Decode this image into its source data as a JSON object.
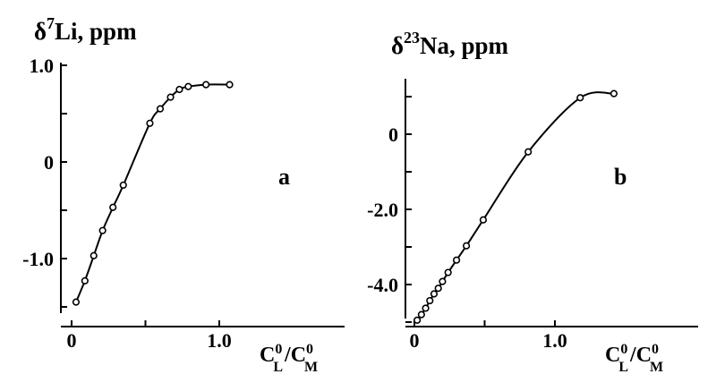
{
  "chart_data": [
    {
      "type": "line",
      "panel_label": "a",
      "ylabel": {
        "prefix": "δ",
        "superscript": "7",
        "element": "Li",
        "unit": ", ppm"
      },
      "xlabel": {
        "c1": "C",
        "c1_sup": "0",
        "c1_sub": "L",
        "slash": "/",
        "c2": "C",
        "c2_sup": "0",
        "c2_sub": "M"
      },
      "xlim": [
        0,
        1.12
      ],
      "ylim": [
        -1.55,
        1.0
      ],
      "x_ticks": [
        {
          "value": 0,
          "label": "0"
        },
        {
          "value": 0.5,
          "label": ""
        },
        {
          "value": 1.0,
          "label": "1.0"
        }
      ],
      "y_ticks": [
        {
          "value": 1.0,
          "label": "1.0"
        },
        {
          "value": 0.5,
          "label": ""
        },
        {
          "value": 0,
          "label": "0"
        },
        {
          "value": -0.5,
          "label": ""
        },
        {
          "value": -1.0,
          "label": "-1.0"
        },
        {
          "value": -1.5,
          "label": ""
        }
      ],
      "grid": false,
      "series": [
        {
          "points": [
            {
              "x": 0.03,
              "y": -1.45
            },
            {
              "x": 0.09,
              "y": -1.23
            },
            {
              "x": 0.15,
              "y": -0.97
            },
            {
              "x": 0.21,
              "y": -0.71
            },
            {
              "x": 0.28,
              "y": -0.47
            },
            {
              "x": 0.35,
              "y": -0.24
            },
            {
              "x": 0.53,
              "y": 0.4
            },
            {
              "x": 0.6,
              "y": 0.55
            },
            {
              "x": 0.67,
              "y": 0.67
            },
            {
              "x": 0.73,
              "y": 0.75
            },
            {
              "x": 0.79,
              "y": 0.78
            },
            {
              "x": 0.91,
              "y": 0.8
            },
            {
              "x": 1.07,
              "y": 0.8
            }
          ]
        }
      ]
    },
    {
      "type": "line",
      "panel_label": "b",
      "ylabel": {
        "prefix": "δ",
        "superscript": "23",
        "element": "Na",
        "unit": ", ppm"
      },
      "xlabel": {
        "c1": "C",
        "c1_sup": "0",
        "c1_sub": "L",
        "slash": "/",
        "c2": "C",
        "c2_sup": "0",
        "c2_sub": "M"
      },
      "xlim": [
        0,
        1.42
      ],
      "ylim": [
        -5.0,
        1.5
      ],
      "x_ticks": [
        {
          "value": 0,
          "label": "0"
        },
        {
          "value": 0.5,
          "label": ""
        },
        {
          "value": 1.0,
          "label": "1.0"
        }
      ],
      "y_ticks": [
        {
          "value": 1.0,
          "label": ""
        },
        {
          "value": 0,
          "label": "0"
        },
        {
          "value": -1.0,
          "label": ""
        },
        {
          "value": -2.0,
          "label": "-2.0"
        },
        {
          "value": -3.0,
          "label": ""
        },
        {
          "value": -4.0,
          "label": "-4.0"
        },
        {
          "value": -5.0,
          "label": ""
        }
      ],
      "grid": false,
      "series": [
        {
          "points": [
            {
              "x": 0.02,
              "y": -4.95
            },
            {
              "x": 0.05,
              "y": -4.8
            },
            {
              "x": 0.08,
              "y": -4.63
            },
            {
              "x": 0.11,
              "y": -4.43
            },
            {
              "x": 0.14,
              "y": -4.25
            },
            {
              "x": 0.17,
              "y": -4.1
            },
            {
              "x": 0.2,
              "y": -3.92
            },
            {
              "x": 0.24,
              "y": -3.68
            },
            {
              "x": 0.3,
              "y": -3.35
            },
            {
              "x": 0.37,
              "y": -2.97
            },
            {
              "x": 0.49,
              "y": -2.28
            },
            {
              "x": 0.81,
              "y": -0.47
            },
            {
              "x": 1.18,
              "y": 0.97
            },
            {
              "x": 1.42,
              "y": 1.08
            }
          ]
        }
      ]
    }
  ]
}
